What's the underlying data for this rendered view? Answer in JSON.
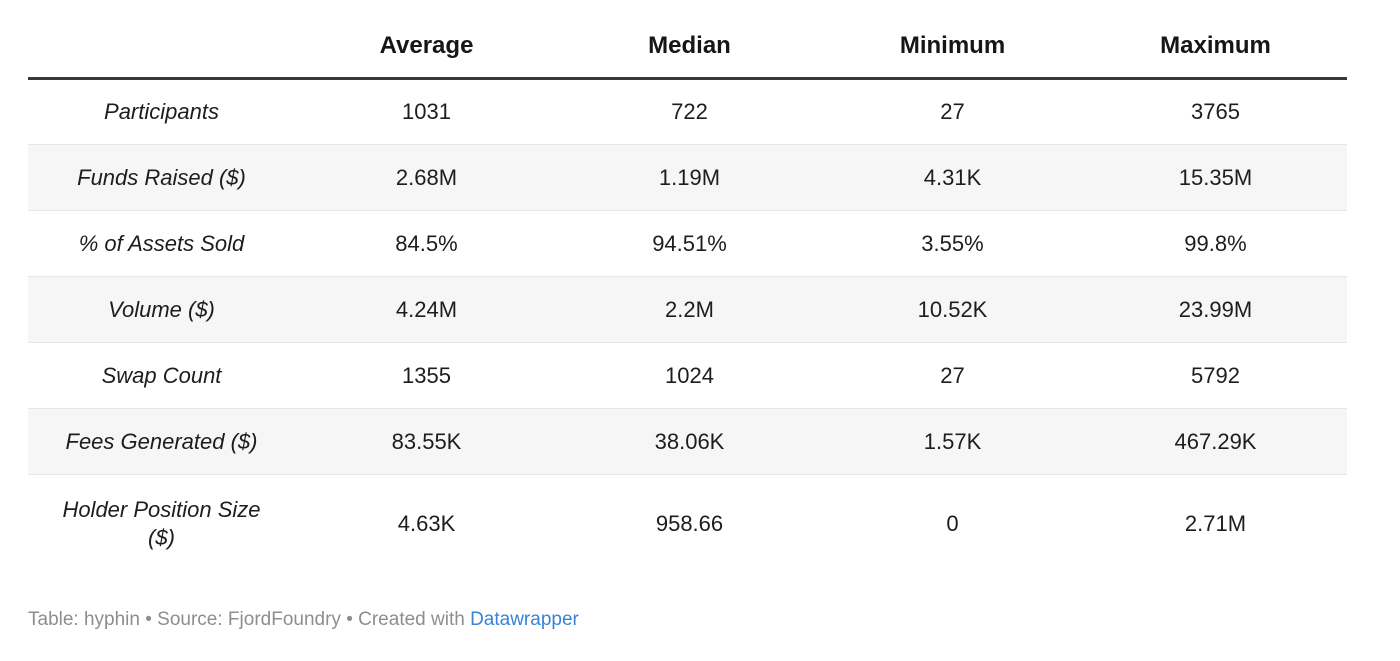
{
  "chart_data": {
    "type": "table",
    "columns": [
      "",
      "Average",
      "Median",
      "Minimum",
      "Maximum"
    ],
    "rows": [
      {
        "label": "Participants",
        "values": [
          "1031",
          "722",
          "27",
          "3765"
        ]
      },
      {
        "label": "Funds Raised ($)",
        "values": [
          "2.68M",
          "1.19M",
          "4.31K",
          "15.35M"
        ]
      },
      {
        "label": "% of Assets Sold",
        "values": [
          "84.5%",
          "94.51%",
          "3.55%",
          "99.8%"
        ]
      },
      {
        "label": "Volume ($)",
        "values": [
          "4.24M",
          "2.2M",
          "10.52K",
          "23.99M"
        ]
      },
      {
        "label": "Swap Count",
        "values": [
          "1355",
          "1024",
          "27",
          "5792"
        ]
      },
      {
        "label": "Fees Generated ($)",
        "values": [
          "83.55K",
          "38.06K",
          "1.57K",
          "467.29K"
        ]
      },
      {
        "label": "Holder Position Size ($)",
        "values": [
          "4.63K",
          "958.66",
          "0",
          "2.71M"
        ]
      }
    ],
    "layout": {
      "zebra_striped_rows": [
        1,
        3,
        5
      ],
      "header_rule": "thick-dark",
      "row_rule": "thin-light",
      "alignment": "center"
    }
  },
  "footer": {
    "attribution_prefix": "Table: hyphin • Source: FjordFoundry • Created with ",
    "link_label": "Datawrapper"
  },
  "colors": {
    "text": "#1d1d1d",
    "header_border": "#383838",
    "row_border": "#e7e7e7",
    "stripe_bg": "#f6f6f6",
    "footer_text": "#8e8e8e",
    "link_blue": "#3b82d6"
  }
}
